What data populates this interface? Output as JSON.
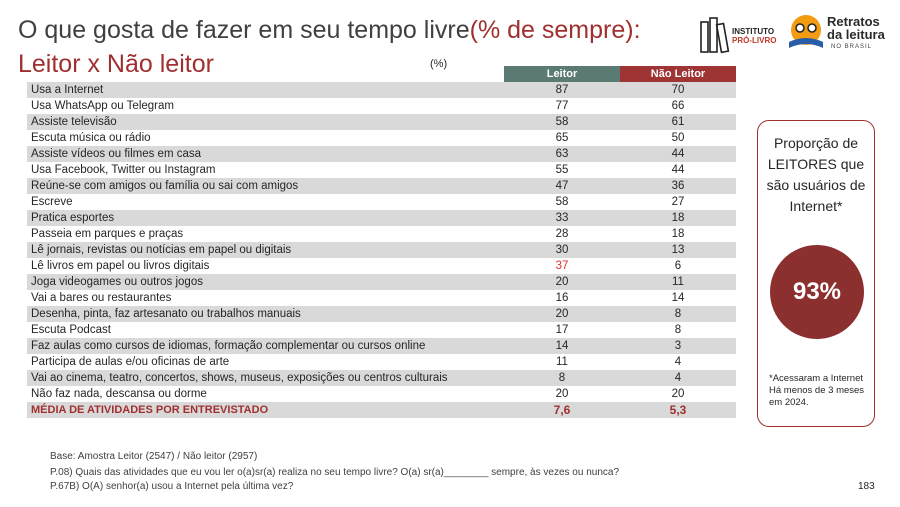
{
  "header": {
    "title_main": "O que gosta de fazer em seu tempo livre",
    "title_highlight": "(% de sempre):",
    "subtitle": "Leitor x Não leitor",
    "unit_note": "(%)"
  },
  "logos": {
    "instituto_line1": "INSTITUTO",
    "instituto_line2": "PRÓ-LIVRO",
    "retratos_line1": "Retratos",
    "retratos_line2": "da leitura",
    "retratos_line3": "NO BRASIL"
  },
  "chart_data": {
    "type": "table",
    "columns": [
      "Leitor",
      "Não Leitor"
    ],
    "rows": [
      {
        "label": "Usa a Internet",
        "leitor": "87",
        "nao_leitor": "70"
      },
      {
        "label": "Usa WhatsApp ou  Telegram",
        "leitor": "77",
        "nao_leitor": "66"
      },
      {
        "label": "Assiste televisão",
        "leitor": "58",
        "nao_leitor": "61"
      },
      {
        "label": "Escuta música ou rádio",
        "leitor": "65",
        "nao_leitor": "50"
      },
      {
        "label": "Assiste vídeos ou filmes em casa",
        "leitor": "63",
        "nao_leitor": "44"
      },
      {
        "label": "Usa Facebook, Twitter ou Instagram",
        "leitor": "55",
        "nao_leitor": "44"
      },
      {
        "label": "Reúne-se com amigos ou família ou sai com amigos",
        "leitor": "47",
        "nao_leitor": "36"
      },
      {
        "label": "Escreve",
        "leitor": "58",
        "nao_leitor": "27"
      },
      {
        "label": "Pratica esportes",
        "leitor": "33",
        "nao_leitor": "18"
      },
      {
        "label": "Passeia em parques e praças",
        "leitor": "28",
        "nao_leitor": "18"
      },
      {
        "label": "Lê jornais, revistas ou notícias em papel ou digitais",
        "leitor": "30",
        "nao_leitor": "13"
      },
      {
        "label": "Lê livros em papel ou livros digitais",
        "leitor": "37",
        "nao_leitor": "6",
        "highlight": true
      },
      {
        "label": "Joga videogames ou outros jogos",
        "leitor": "20",
        "nao_leitor": "11"
      },
      {
        "label": "Vai a bares ou restaurantes",
        "leitor": "16",
        "nao_leitor": "14"
      },
      {
        "label": "Desenha, pinta, faz artesanato ou trabalhos manuais",
        "leitor": "20",
        "nao_leitor": "8"
      },
      {
        "label": "Escuta Podcast",
        "leitor": "17",
        "nao_leitor": "8"
      },
      {
        "label": "Faz aulas como cursos de idiomas, formação complementar ou cursos online",
        "leitor": "14",
        "nao_leitor": "3"
      },
      {
        "label": "Participa de aulas e/ou oficinas de arte",
        "leitor": "11",
        "nao_leitor": "4"
      },
      {
        "label": "Vai ao cinema, teatro, concertos, shows, museus, exposições ou centros culturais",
        "leitor": "8",
        "nao_leitor": "4"
      },
      {
        "label": "Não faz nada, descansa ou dorme",
        "leitor": "20",
        "nao_leitor": "20"
      }
    ],
    "average_row": {
      "label": "MÉDIA DE ATIVIDADES POR ENTREVISTADO",
      "leitor": "7,6",
      "nao_leitor": "5,3"
    }
  },
  "sidebox": {
    "title": "Proporção de LEITORES que são usuários de Internet*",
    "value": "93%",
    "footnote": "*Acessaram a Internet Há menos de 3 meses em 2024."
  },
  "footer": {
    "base": "Base: Amostra Leitor (2547) / Não leitor (2957)",
    "question1": "P.08) Quais das atividades que eu vou ler o(a)sr(a) realiza no seu tempo livre? O(a) sr(a)________ sempre, às vezes ou nunca?",
    "question2": "P.67B) O(A) senhor(a) usou a Internet pela última vez?",
    "page": "183"
  },
  "colors": {
    "header_leitor": "#5b7a74",
    "header_nao_leitor": "#9e3434",
    "accent": "#a03030",
    "circle": "#8b2f2f",
    "row_stripe": "#d9d9d9"
  }
}
